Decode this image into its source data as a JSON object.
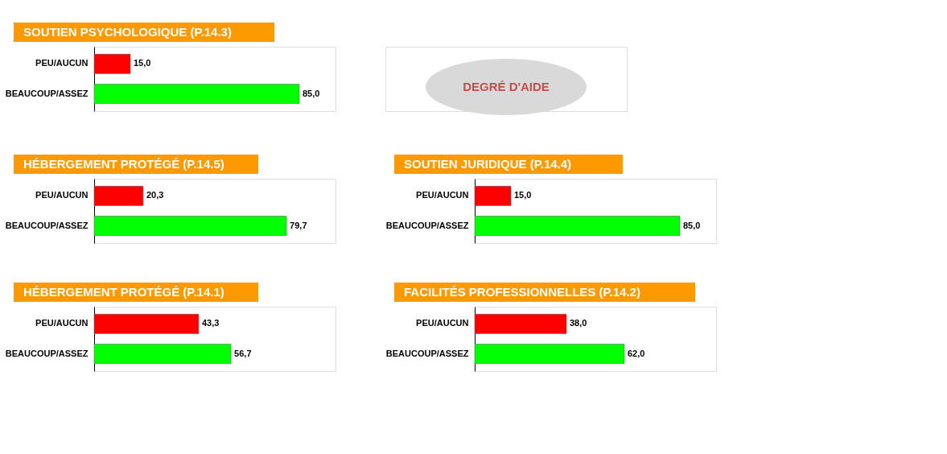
{
  "chart_data": [
    {
      "type": "bar",
      "orientation": "horizontal",
      "title": "SOUTIEN PSYCHOLOGIQUE (P.14.3)",
      "categories": [
        "PEU/AUCUN",
        "BEAUCOUP/ASSEZ"
      ],
      "values": [
        15.0,
        85.0
      ],
      "colors": [
        "#ff0000",
        "#00ff00"
      ],
      "value_labels": [
        "15,0",
        "85,0"
      ],
      "xlim": [
        0,
        100
      ],
      "tick_labels": "y",
      "grid": false,
      "legend": false
    },
    {
      "type": "other",
      "annotations": [
        "DEGRÉ D'AIDE"
      ]
    },
    {
      "type": "bar",
      "orientation": "horizontal",
      "title": "HÉBERGEMENT PROTÉGÉ (P.14.5)",
      "categories": [
        "PEU/AUCUN",
        "BEAUCOUP/ASSEZ"
      ],
      "values": [
        20.3,
        79.7
      ],
      "colors": [
        "#ff0000",
        "#00ff00"
      ],
      "value_labels": [
        "20,3",
        "79,7"
      ],
      "xlim": [
        0,
        100
      ],
      "tick_labels": "y",
      "grid": false,
      "legend": false
    },
    {
      "type": "bar",
      "orientation": "horizontal",
      "title": "SOUTIEN JURIDIQUE (P.14.4)",
      "categories": [
        "PEU/AUCUN",
        "BEAUCOUP/ASSEZ"
      ],
      "values": [
        15.0,
        85.0
      ],
      "colors": [
        "#ff0000",
        "#00ff00"
      ],
      "value_labels": [
        "15,0",
        "85,0"
      ],
      "xlim": [
        0,
        100
      ],
      "tick_labels": "y",
      "grid": false,
      "legend": false
    },
    {
      "type": "bar",
      "orientation": "horizontal",
      "title": "HÉBERGEMENT PROTÉGÉ (P.14.1)",
      "categories": [
        "PEU/AUCUN",
        "BEAUCOUP/ASSEZ"
      ],
      "values": [
        43.3,
        56.7
      ],
      "colors": [
        "#ff0000",
        "#00ff00"
      ],
      "value_labels": [
        "43,3",
        "56,7"
      ],
      "xlim": [
        0,
        100
      ],
      "tick_labels": "y",
      "grid": false,
      "legend": false
    },
    {
      "type": "bar",
      "orientation": "horizontal",
      "title": "FACILITÉS PROFESSIONNELLES (P.14.2)",
      "categories": [
        "PEU/AUCUN",
        "BEAUCOUP/ASSEZ"
      ],
      "values": [
        38.0,
        62.0
      ],
      "colors": [
        "#ff0000",
        "#00ff00"
      ],
      "value_labels": [
        "38,0",
        "62,0"
      ],
      "xlim": [
        0,
        100
      ],
      "tick_labels": "y",
      "grid": false,
      "legend": false
    }
  ]
}
